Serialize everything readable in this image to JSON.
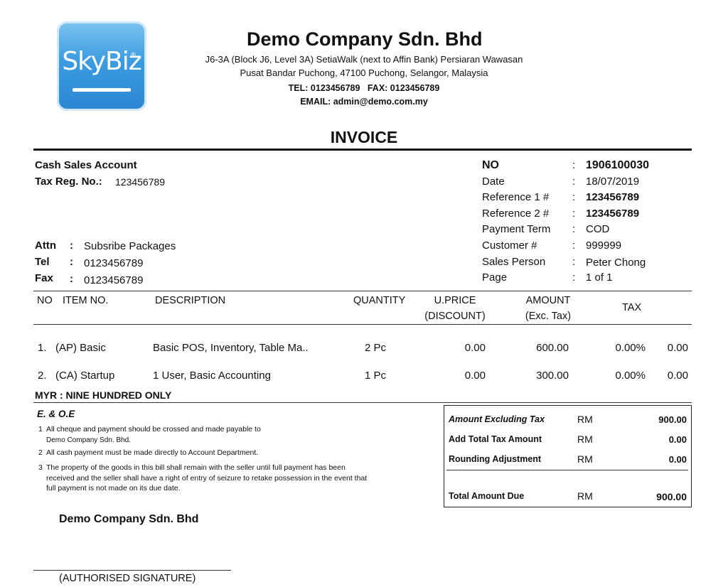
{
  "logo": {
    "text": "SkyBiz",
    "reg": "®"
  },
  "company": {
    "name": "Demo Company Sdn. Bhd",
    "address_line1": "J6-3A (Block J6, Level 3A) SetiaWalk (next to Affin Bank) Persiaran Wawasan",
    "address_line2": "Pusat Bandar Puchong, 47100 Puchong, Selangor, Malaysia",
    "tel_fax": "TEL: 0123456789   FAX: 0123456789",
    "email": "EMAIL: admin@demo.com.my"
  },
  "doc_title": "INVOICE",
  "customer": {
    "name": "Cash Sales Account",
    "tax_label": "Tax Reg. No.:",
    "tax_value": "123456789",
    "attn_label": "Attn",
    "attn_value": "Subsribe Packages",
    "tel_label": "Tel",
    "tel_value": "0123456789",
    "fax_label": "Fax",
    "fax_value": "0123456789"
  },
  "info": [
    {
      "label": "NO",
      "value": "1906100030"
    },
    {
      "label": "Date",
      "value": "18/07/2019"
    },
    {
      "label": "Reference 1 #",
      "value": "123456789"
    },
    {
      "label": "Reference 2 #",
      "value": "123456789"
    },
    {
      "label": "Payment Term",
      "value": "COD"
    },
    {
      "label": "Customer #",
      "value": "999999"
    },
    {
      "label": "Sales Person",
      "value": "Peter Chong"
    },
    {
      "label": "Page",
      "value": "1 of 1"
    }
  ],
  "colon": ":",
  "table": {
    "headers": {
      "no": "NO",
      "item": "ITEM NO.",
      "desc": "DESCRIPTION",
      "qty": "QUANTITY",
      "uprice1": "U.PRICE",
      "uprice2": "(DISCOUNT)",
      "amount1": "AMOUNT",
      "amount2": "(Exc. Tax)",
      "tax": "TAX"
    },
    "rows": [
      {
        "no": "1.",
        "item": "(AP) Basic",
        "desc": "Basic POS, Inventory, Table Ma..",
        "qty": "2 Pc",
        "uprice": "0.00",
        "amount": "600.00",
        "tax_rate": "0.00%",
        "tax_amt": "0.00"
      },
      {
        "no": "2.",
        "item": "(CA) Startup",
        "desc": "1 User, Basic Accounting",
        "qty": "1 Pc",
        "uprice": "0.00",
        "amount": "300.00",
        "tax_rate": "0.00%",
        "tax_amt": "0.00"
      }
    ]
  },
  "amount_words": "MYR : NINE HUNDRED ONLY",
  "terms": {
    "heading": "E. & O.E",
    "t1_num": "1",
    "t1a": "All cheque and payment should be crossed and made payable to",
    "t1b": "Demo Company Sdn. Bhd.",
    "t2_num": "2",
    "t2": "All cash payment must be made directly to Account Department.",
    "t3_num": "3",
    "t3a": "The property of the goods in this bill shall remain with the seller until full payment has been",
    "t3b": "received and the seller shall have a right of entry of seizure to retake possession in the event that",
    "t3c": "full payment is not made on its due date."
  },
  "totals": [
    {
      "label": "Amount Excluding Tax",
      "cur": "RM",
      "value": "900.00"
    },
    {
      "label": "Add Total Tax Amount",
      "cur": "RM",
      "value": "0.00"
    },
    {
      "label": "Rounding Adjustment",
      "cur": "RM",
      "value": "0.00"
    },
    {
      "label": "Total Amount Due",
      "cur": "RM",
      "value": "900.00"
    }
  ],
  "signature": {
    "company": "Demo Company Sdn. Bhd",
    "label": "(AUTHORISED SIGNATURE)"
  }
}
